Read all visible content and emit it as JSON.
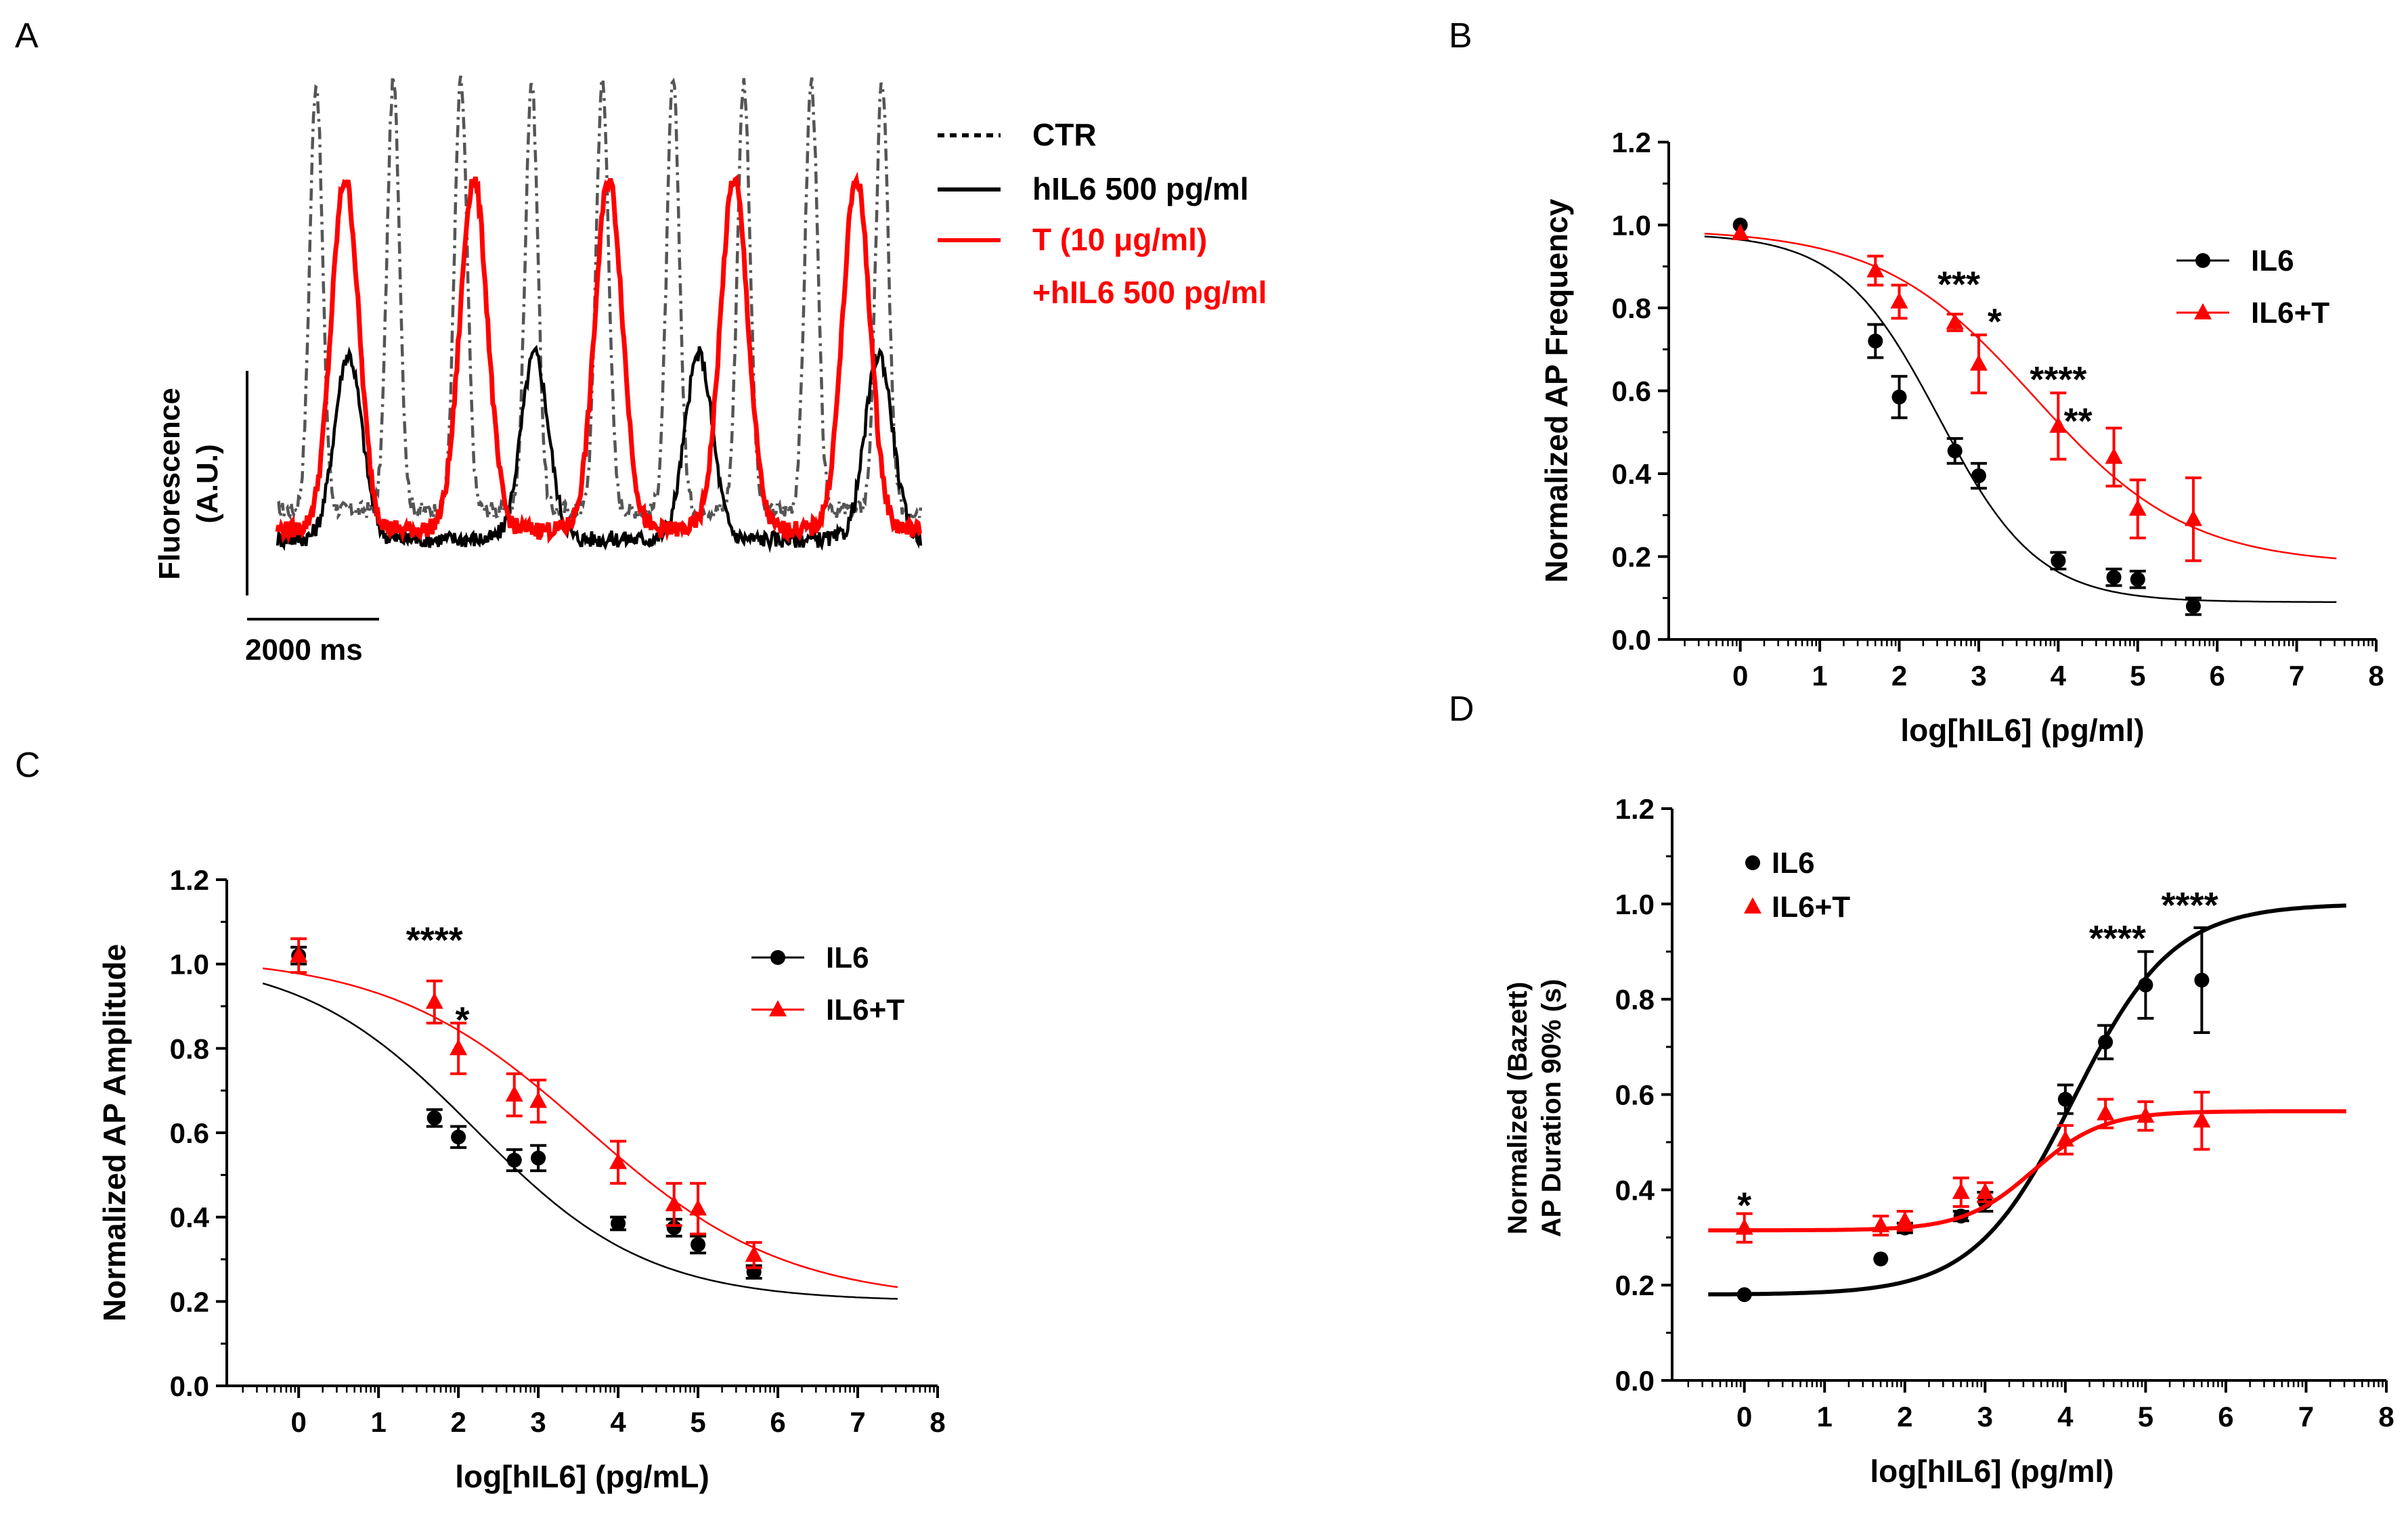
{
  "chart_data": [
    {
      "panel": "A",
      "type": "line",
      "title": "",
      "ylabel_lines": [
        "Fluorescence",
        "(A.U.)"
      ],
      "scale_bar_label": "2000 ms",
      "legend": [
        {
          "label": "CTR",
          "color": "#000000",
          "style": "dotted"
        },
        {
          "label": "hIL6 500 pg/ml",
          "color": "#000000",
          "style": "solid"
        },
        {
          "label": "T (10 μg/ml)",
          "color": "#ff0000",
          "style": "solid"
        },
        {
          "label": "+hIL6 500 pg/ml",
          "color": "#ff0000",
          "style": "none"
        }
      ],
      "series": [
        {
          "name": "CTR",
          "color": "#555555",
          "dash": "dashdot",
          "base": 0.12,
          "amp": 0.88,
          "width": 0.014,
          "peaks": [
            0.06,
            0.18,
            0.285,
            0.395,
            0.505,
            0.615,
            0.725,
            0.83,
            0.94
          ]
        },
        {
          "name": "hIL6 500 pg/ml",
          "color": "#000000",
          "dash": "solid",
          "base": 0.06,
          "amp": 0.38,
          "width": 0.03,
          "peaks": [
            0.11,
            0.4,
            0.655,
            0.935
          ]
        },
        {
          "name": "T (10 μg/ml)+hIL6 500 pg/ml",
          "color": "#ff0000",
          "dash": "solid",
          "base": 0.08,
          "amp": 0.72,
          "width": 0.03,
          "peaks": [
            0.105,
            0.305,
            0.515,
            0.71,
            0.9
          ]
        }
      ]
    },
    {
      "panel": "B",
      "type": "scatter",
      "xlabel": "log[hIL6] (pg/ml)",
      "ylabel": "Normalized AP Frequency",
      "xlim": [
        -0.9,
        8.0
      ],
      "ylim": [
        0.0,
        1.2
      ],
      "xticks": [
        0,
        1,
        2,
        3,
        4,
        5,
        6,
        7,
        8
      ],
      "yticks": [
        "0.0",
        "0.2",
        "0.4",
        "0.6",
        "0.8",
        "1.0",
        "1.2"
      ],
      "legend": [
        "IL6",
        "IL6+T"
      ],
      "series": [
        {
          "name": "IL6",
          "color": "#000000",
          "marker": "circle",
          "points": [
            [
              0,
              1.0,
              0
            ],
            [
              1.7,
              0.72,
              0.04
            ],
            [
              2.0,
              0.585,
              0.05
            ],
            [
              2.7,
              0.455,
              0.03
            ],
            [
              3.0,
              0.395,
              0.03
            ],
            [
              4.0,
              0.19,
              0.02
            ],
            [
              4.7,
              0.15,
              0.02
            ],
            [
              5.0,
              0.145,
              0.02
            ],
            [
              5.7,
              0.08,
              0.02
            ]
          ],
          "fit": {
            "top": 0.98,
            "bottom": 0.09,
            "logec50": 2.5,
            "hill": 0.7
          }
        },
        {
          "name": "IL6+T",
          "color": "#ff0000",
          "marker": "triangle",
          "points": [
            [
              0,
              0.98,
              0
            ],
            [
              1.7,
              0.89,
              0.035
            ],
            [
              2.0,
              0.815,
              0.04
            ],
            [
              2.7,
              0.765,
              0.02
            ],
            [
              3.0,
              0.665,
              0.07
            ],
            [
              4.0,
              0.515,
              0.08
            ],
            [
              4.7,
              0.44,
              0.07
            ],
            [
              5.0,
              0.315,
              0.07
            ],
            [
              5.7,
              0.29,
              0.1
            ]
          ],
          "fit": {
            "top": 0.99,
            "bottom": 0.18,
            "logec50": 3.7,
            "hill": 0.45
          }
        }
      ],
      "annotations": [
        {
          "text": "***",
          "x": 2.75,
          "y": 0.86
        },
        {
          "text": "*",
          "x": 3.2,
          "y": 0.77
        },
        {
          "text": "****",
          "x": 4.0,
          "y": 0.63
        },
        {
          "text": "**",
          "x": 4.25,
          "y": 0.53
        }
      ]
    },
    {
      "panel": "C",
      "type": "scatter",
      "xlabel": "log[hIL6] (pg/mL)",
      "ylabel": "Normalized AP Amplitude",
      "xlim": [
        -0.9,
        8.0
      ],
      "ylim": [
        0.0,
        1.2
      ],
      "xticks": [
        0,
        1,
        2,
        3,
        4,
        5,
        6,
        7,
        8
      ],
      "yticks": [
        "0.0",
        "0.2",
        "0.4",
        "0.6",
        "0.8",
        "1.0",
        "1.2"
      ],
      "legend": [
        "IL6",
        "IL6+T"
      ],
      "series": [
        {
          "name": "IL6",
          "color": "#000000",
          "marker": "circle",
          "points": [
            [
              0,
              1.02,
              0.02
            ],
            [
              1.7,
              0.635,
              0.02
            ],
            [
              2.0,
              0.59,
              0.025
            ],
            [
              2.7,
              0.535,
              0.025
            ],
            [
              3.0,
              0.54,
              0.03
            ],
            [
              4.0,
              0.385,
              0.015
            ],
            [
              4.7,
              0.375,
              0.02
            ],
            [
              5.0,
              0.335,
              0.02
            ],
            [
              5.7,
              0.27,
              0.015
            ]
          ],
          "fit": {
            "top": 1.02,
            "bottom": 0.2,
            "logec50": 2.2,
            "hill": 0.4
          }
        },
        {
          "name": "IL6+T",
          "color": "#ff0000",
          "marker": "triangle",
          "points": [
            [
              0,
              1.02,
              0.04
            ],
            [
              1.7,
              0.91,
              0.05
            ],
            [
              2.0,
              0.8,
              0.06
            ],
            [
              2.7,
              0.69,
              0.05
            ],
            [
              3.0,
              0.675,
              0.05
            ],
            [
              4.0,
              0.53,
              0.05
            ],
            [
              4.7,
              0.43,
              0.05
            ],
            [
              5.0,
              0.42,
              0.06
            ],
            [
              5.7,
              0.31,
              0.03
            ]
          ],
          "fit": {
            "top": 1.02,
            "bottom": 0.2,
            "logec50": 3.6,
            "hill": 0.35
          }
        }
      ],
      "annotations": [
        {
          "text": "****",
          "x": 1.7,
          "y": 1.06
        },
        {
          "text": "*",
          "x": 2.05,
          "y": 0.87
        }
      ]
    },
    {
      "panel": "D",
      "type": "scatter",
      "xlabel": "log[hIL6] (pg/ml)",
      "ylabel_lines": [
        "Normalized (Bazett)",
        "AP Duration 90% (s)"
      ],
      "xlim": [
        -0.9,
        8.0
      ],
      "ylim": [
        0.0,
        1.2
      ],
      "xticks": [
        0,
        1,
        2,
        3,
        4,
        5,
        6,
        7,
        8
      ],
      "yticks": [
        "0.0",
        "0.2",
        "0.4",
        "0.6",
        "0.8",
        "1.0",
        "1.2"
      ],
      "legend": [
        "IL6",
        "IL6+T"
      ],
      "series": [
        {
          "name": "IL6",
          "color": "#000000",
          "marker": "circle",
          "points": [
            [
              0,
              0.18,
              0
            ],
            [
              1.7,
              0.255,
              0
            ],
            [
              2.0,
              0.32,
              0.01
            ],
            [
              2.7,
              0.345,
              0.01
            ],
            [
              3.0,
              0.375,
              0.02
            ],
            [
              4.0,
              0.59,
              0.03
            ],
            [
              4.5,
              0.71,
              0.035
            ],
            [
              5.0,
              0.83,
              0.07
            ],
            [
              5.7,
              0.84,
              0.11
            ]
          ],
          "fit": {
            "top": 1.0,
            "bottom": 0.18,
            "logec50": 4.1,
            "hill": 0.7
          }
        },
        {
          "name": "IL6+T",
          "color": "#ff0000",
          "marker": "triangle",
          "points": [
            [
              0,
              0.32,
              0.03
            ],
            [
              1.7,
              0.325,
              0.02
            ],
            [
              2.0,
              0.335,
              0.02
            ],
            [
              2.7,
              0.395,
              0.03
            ],
            [
              3.0,
              0.395,
              0.02
            ],
            [
              4.0,
              0.505,
              0.03
            ],
            [
              4.5,
              0.56,
              0.03
            ],
            [
              5.0,
              0.555,
              0.03
            ],
            [
              5.7,
              0.545,
              0.06
            ]
          ],
          "fit": {
            "top": 0.565,
            "bottom": 0.315,
            "logec50": 3.6,
            "hill": 1.0
          }
        }
      ],
      "annotations": [
        {
          "text": "*",
          "x": 0.0,
          "y": 0.37
        },
        {
          "text": "****",
          "x": 4.65,
          "y": 0.93
        },
        {
          "text": "****",
          "x": 5.55,
          "y": 1.0
        }
      ]
    }
  ]
}
